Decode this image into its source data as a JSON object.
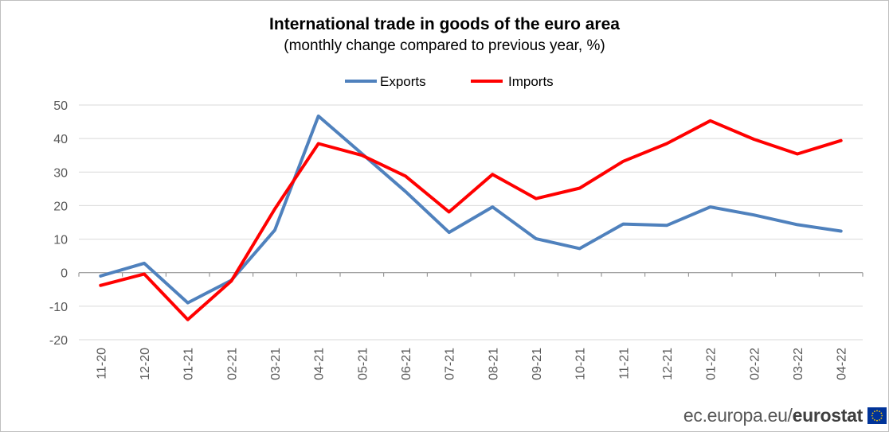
{
  "chart_data": {
    "type": "line",
    "title": "International trade in goods of the euro area",
    "subtitle": "(monthly change compared to previous year, %)",
    "categories": [
      "11-20",
      "12-20",
      "01-21",
      "02-21",
      "03-21",
      "04-21",
      "05-21",
      "06-21",
      "07-21",
      "08-21",
      "09-21",
      "10-21",
      "11-21",
      "12-21",
      "01-22",
      "02-22",
      "03-22",
      "04-22"
    ],
    "series": [
      {
        "name": "Exports",
        "color": "#4f81bd",
        "values": [
          -1,
          2.8,
          -9,
          -2.3,
          12.7,
          46.7,
          35.5,
          24.2,
          12,
          19.6,
          10.1,
          7.2,
          14.5,
          14.1,
          19.6,
          17.2,
          14.3,
          12.4
        ]
      },
      {
        "name": "Imports",
        "color": "#ff0000",
        "values": [
          -3.8,
          -0.4,
          -14,
          -2.5,
          19,
          38.5,
          35,
          28.8,
          18.1,
          29.3,
          22.1,
          25.2,
          33.2,
          38.5,
          45.3,
          39.8,
          35.4,
          39.4
        ]
      }
    ],
    "yticks": [
      50,
      40,
      30,
      20,
      10,
      0,
      -10,
      -20
    ],
    "ylim": [
      -20,
      50
    ],
    "legend_position": "top-center",
    "grid": "horizontal"
  },
  "footer": {
    "site": "ec.europa.eu/",
    "brand": "eurostat"
  },
  "colors": {
    "grid": "#d9d9d9",
    "axis": "#868686",
    "text": "#595959"
  }
}
